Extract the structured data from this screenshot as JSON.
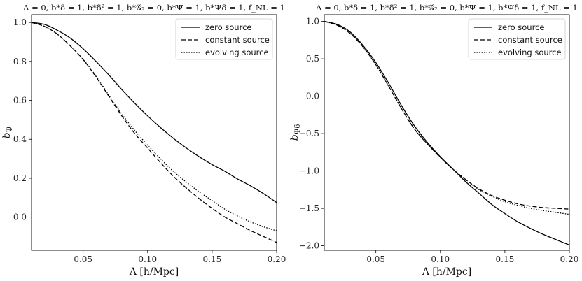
{
  "chart_data": [
    {
      "type": "line",
      "title": "Δ = 0, b*δ = 1, b*δ² = 1, b*𝒢₂ = 0, b*Ψ = 1, b*Ψδ = 1, f_NL = 1",
      "xlabel": "Λ [h/Mpc]",
      "ylabel": "b_Ψ",
      "xlim": [
        0.01,
        0.2
      ],
      "ylim": [
        -0.17,
        1.04
      ],
      "xticks": [
        0.05,
        0.1,
        0.15,
        0.2
      ],
      "xtick_labels": [
        "0.05",
        "0.10",
        "0.15",
        "0.20"
      ],
      "yticks": [
        0.0,
        0.2,
        0.4,
        0.6,
        0.8,
        1.0
      ],
      "ytick_labels": [
        "0.0",
        "0.2",
        "0.4",
        "0.6",
        "0.8",
        "1.0"
      ],
      "legend": "top-right",
      "grid": false,
      "x": [
        0.01,
        0.02,
        0.03,
        0.04,
        0.05,
        0.06,
        0.07,
        0.08,
        0.09,
        0.1,
        0.11,
        0.12,
        0.13,
        0.14,
        0.15,
        0.16,
        0.17,
        0.18,
        0.19,
        0.2
      ],
      "series": [
        {
          "name": "zero source",
          "style": "solid",
          "values": [
            1.0,
            0.99,
            0.96,
            0.92,
            0.865,
            0.8,
            0.73,
            0.655,
            0.585,
            0.52,
            0.46,
            0.405,
            0.355,
            0.31,
            0.27,
            0.235,
            0.195,
            0.16,
            0.12,
            0.075
          ]
        },
        {
          "name": "constant source",
          "style": "dashed",
          "values": [
            1.0,
            0.98,
            0.94,
            0.88,
            0.81,
            0.72,
            0.62,
            0.52,
            0.43,
            0.355,
            0.28,
            0.21,
            0.15,
            0.095,
            0.045,
            0.0,
            -0.035,
            -0.07,
            -0.1,
            -0.13
          ]
        },
        {
          "name": "evolving source",
          "style": "dotted",
          "values": [
            1.0,
            0.98,
            0.94,
            0.88,
            0.81,
            0.725,
            0.625,
            0.53,
            0.445,
            0.37,
            0.3,
            0.235,
            0.18,
            0.13,
            0.085,
            0.04,
            0.005,
            -0.025,
            -0.05,
            -0.07
          ]
        }
      ]
    },
    {
      "type": "line",
      "title": "Δ = 0, b*δ = 1, b*δ² = 1, b*𝒢₂ = 0, b*Ψ = 1, b*Ψδ = 1, f_NL = 1",
      "xlabel": "Λ [h/Mpc]",
      "ylabel": "b_Ψδ",
      "xlim": [
        0.01,
        0.2
      ],
      "ylim": [
        -2.06,
        1.09
      ],
      "xticks": [
        0.05,
        0.1,
        0.15,
        0.2
      ],
      "xtick_labels": [
        "0.05",
        "0.10",
        "0.15",
        "0.20"
      ],
      "yticks": [
        -2.0,
        -1.5,
        -1.0,
        -0.5,
        0.0,
        0.5,
        1.0
      ],
      "ytick_labels": [
        "−2.0",
        "−1.5",
        "−1.0",
        "−0.5",
        "0.0",
        "0.5",
        "1.0"
      ],
      "legend": "top-right",
      "grid": false,
      "x": [
        0.01,
        0.02,
        0.03,
        0.04,
        0.05,
        0.06,
        0.07,
        0.08,
        0.09,
        0.1,
        0.11,
        0.12,
        0.13,
        0.14,
        0.15,
        0.16,
        0.17,
        0.18,
        0.19,
        0.2
      ],
      "series": [
        {
          "name": "zero source",
          "style": "solid",
          "values": [
            1.0,
            0.96,
            0.86,
            0.68,
            0.45,
            0.17,
            -0.13,
            -0.4,
            -0.62,
            -0.81,
            -0.98,
            -1.15,
            -1.3,
            -1.45,
            -1.57,
            -1.68,
            -1.77,
            -1.85,
            -1.92,
            -1.99
          ]
        },
        {
          "name": "constant source",
          "style": "dashed",
          "values": [
            1.0,
            0.95,
            0.84,
            0.66,
            0.42,
            0.13,
            -0.17,
            -0.44,
            -0.64,
            -0.82,
            -0.98,
            -1.12,
            -1.24,
            -1.33,
            -1.39,
            -1.44,
            -1.47,
            -1.49,
            -1.5,
            -1.51
          ]
        },
        {
          "name": "evolving source",
          "style": "dotted",
          "values": [
            1.0,
            0.95,
            0.84,
            0.66,
            0.42,
            0.13,
            -0.17,
            -0.44,
            -0.64,
            -0.82,
            -0.98,
            -1.12,
            -1.25,
            -1.34,
            -1.41,
            -1.46,
            -1.5,
            -1.53,
            -1.555,
            -1.58
          ]
        }
      ]
    }
  ]
}
